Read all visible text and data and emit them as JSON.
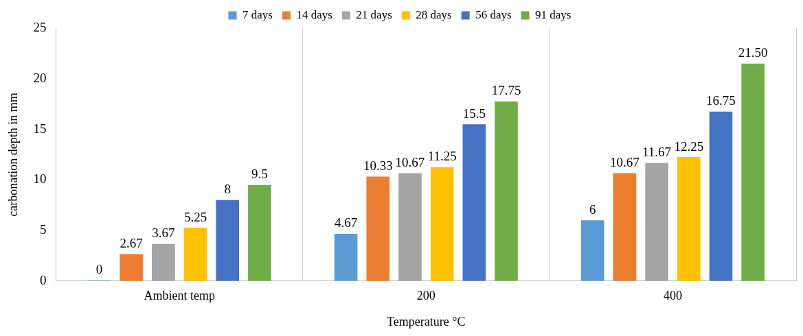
{
  "chart_data": {
    "type": "bar",
    "xlabel": "Temperature °C",
    "ylabel": "carbonation depth in mm",
    "categories": [
      "Ambient temp",
      "200",
      "400"
    ],
    "series": [
      {
        "name": "7 days",
        "color": "#5b9bd5",
        "values": [
          0,
          4.67,
          6
        ],
        "value_labels": [
          "0",
          "4.67",
          "6"
        ]
      },
      {
        "name": "14 days",
        "color": "#ed7d31",
        "values": [
          2.67,
          10.33,
          10.67
        ],
        "value_labels": [
          "2.67",
          "10.33",
          "10.67"
        ]
      },
      {
        "name": "21 days",
        "color": "#a5a5a5",
        "values": [
          3.67,
          10.67,
          11.67
        ],
        "value_labels": [
          "3.67",
          "10.67",
          "11.67"
        ]
      },
      {
        "name": "28 days",
        "color": "#ffc000",
        "values": [
          5.25,
          11.25,
          12.25
        ],
        "value_labels": [
          "5.25",
          "11.25",
          "12.25"
        ]
      },
      {
        "name": "56 days",
        "color": "#4472c4",
        "values": [
          8,
          15.5,
          16.75
        ],
        "value_labels": [
          "8",
          "15.5",
          "16.75"
        ]
      },
      {
        "name": "91 days",
        "color": "#70ad47",
        "values": [
          9.5,
          17.75,
          21.5
        ],
        "value_labels": [
          "9.5",
          "17.75",
          "21.50"
        ]
      }
    ],
    "ylim": [
      0,
      25
    ],
    "yticks": [
      0,
      5,
      10,
      15,
      20,
      25
    ],
    "grid": "x",
    "legend": "top"
  }
}
